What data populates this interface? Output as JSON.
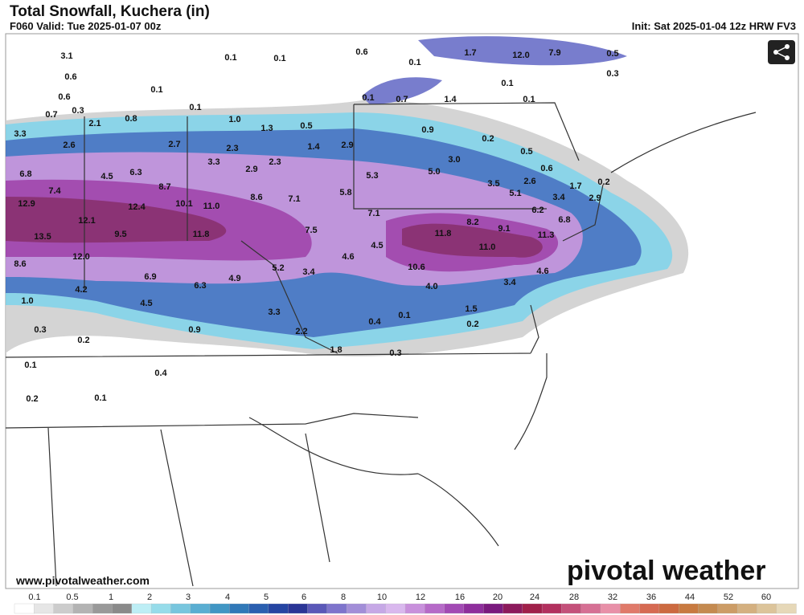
{
  "header": {
    "title": "Total Snowfall, Kuchera (in)",
    "valid": "F060 Valid: Tue 2025-01-07 00z",
    "init": "Init: Sat 2025-01-04 12z HRW FV3"
  },
  "map_labels": [
    "3.1",
    "0.6",
    "0.6",
    "0.7",
    "0.3",
    "2.1",
    "0.8",
    "0.1",
    "0.1",
    "0.1",
    "0.1",
    "0.6",
    "1.7",
    "12.0",
    "7.9",
    "0.5",
    "0.3",
    "0.1",
    "0.1",
    "0.1",
    "0.7",
    "1.4",
    "0.1",
    "3.3",
    "2.6",
    "2.7",
    "1.0",
    "1.3",
    "0.5",
    "1.4",
    "2.9",
    "0.9",
    "0.2",
    "0.5",
    "0.6",
    "2.3",
    "3.3",
    "2.9",
    "2.3",
    "3.0",
    "6.8",
    "4.5",
    "6.3",
    "5.3",
    "5.0",
    "3.5",
    "2.6",
    "0.2",
    "7.4",
    "8.7",
    "8.6",
    "7.1",
    "5.8",
    "5.1",
    "3.4",
    "2.9",
    "1.7",
    "12.9",
    "12.4",
    "10.1",
    "11.0",
    "7.1",
    "8.2",
    "6.2",
    "6.8",
    "12.1",
    "9.1",
    "11.3",
    "13.5",
    "9.5",
    "11.8",
    "7.5",
    "11.8",
    "12.0",
    "4.5",
    "11.0",
    "8.6",
    "4.6",
    "10.6",
    "5.2",
    "3.4",
    "6.9",
    "4.9",
    "4.0",
    "3.4",
    "4.6",
    "4.2",
    "6.3",
    "1.0",
    "4.5",
    "1.5",
    "3.3",
    "0.1",
    "0.4",
    "0.2",
    "0.3",
    "0.9",
    "2.2",
    "0.2",
    "1.8",
    "0.3",
    "0.1",
    "0.4",
    "0.2",
    "0.1"
  ],
  "footer": {
    "website": "www.pivotalweather.com",
    "logo": "pivotal weather"
  },
  "legend": {
    "ticks": [
      "0.1",
      "0.5",
      "1",
      "2",
      "3",
      "4",
      "5",
      "6",
      "8",
      "10",
      "12",
      "16",
      "20",
      "24",
      "28",
      "32",
      "36",
      "44",
      "52",
      "60"
    ],
    "colors": [
      "#ffffff",
      "#e6e6e6",
      "#cccccc",
      "#b3b3b3",
      "#999999",
      "#8a8a8a",
      "#bdeef5",
      "#96dcea",
      "#78c6de",
      "#5aaed2",
      "#4196c4",
      "#3179b8",
      "#2a5fb0",
      "#2545a2",
      "#2a3596",
      "#5a58b8",
      "#7e74cc",
      "#a28ed8",
      "#c6a8e6",
      "#d9b8ee",
      "#c890dc",
      "#b66ac8",
      "#a24ab4",
      "#8e2e9c",
      "#7a1a7e",
      "#8c1a5c",
      "#a0204a",
      "#b2305e",
      "#c4507a",
      "#d67094",
      "#e890a8",
      "#e07a6a",
      "#d66a52",
      "#cc6a40",
      "#c87a40",
      "#c48a50",
      "#cc9c66",
      "#d4b080",
      "#dcc49a",
      "#e6d8b8"
    ]
  }
}
